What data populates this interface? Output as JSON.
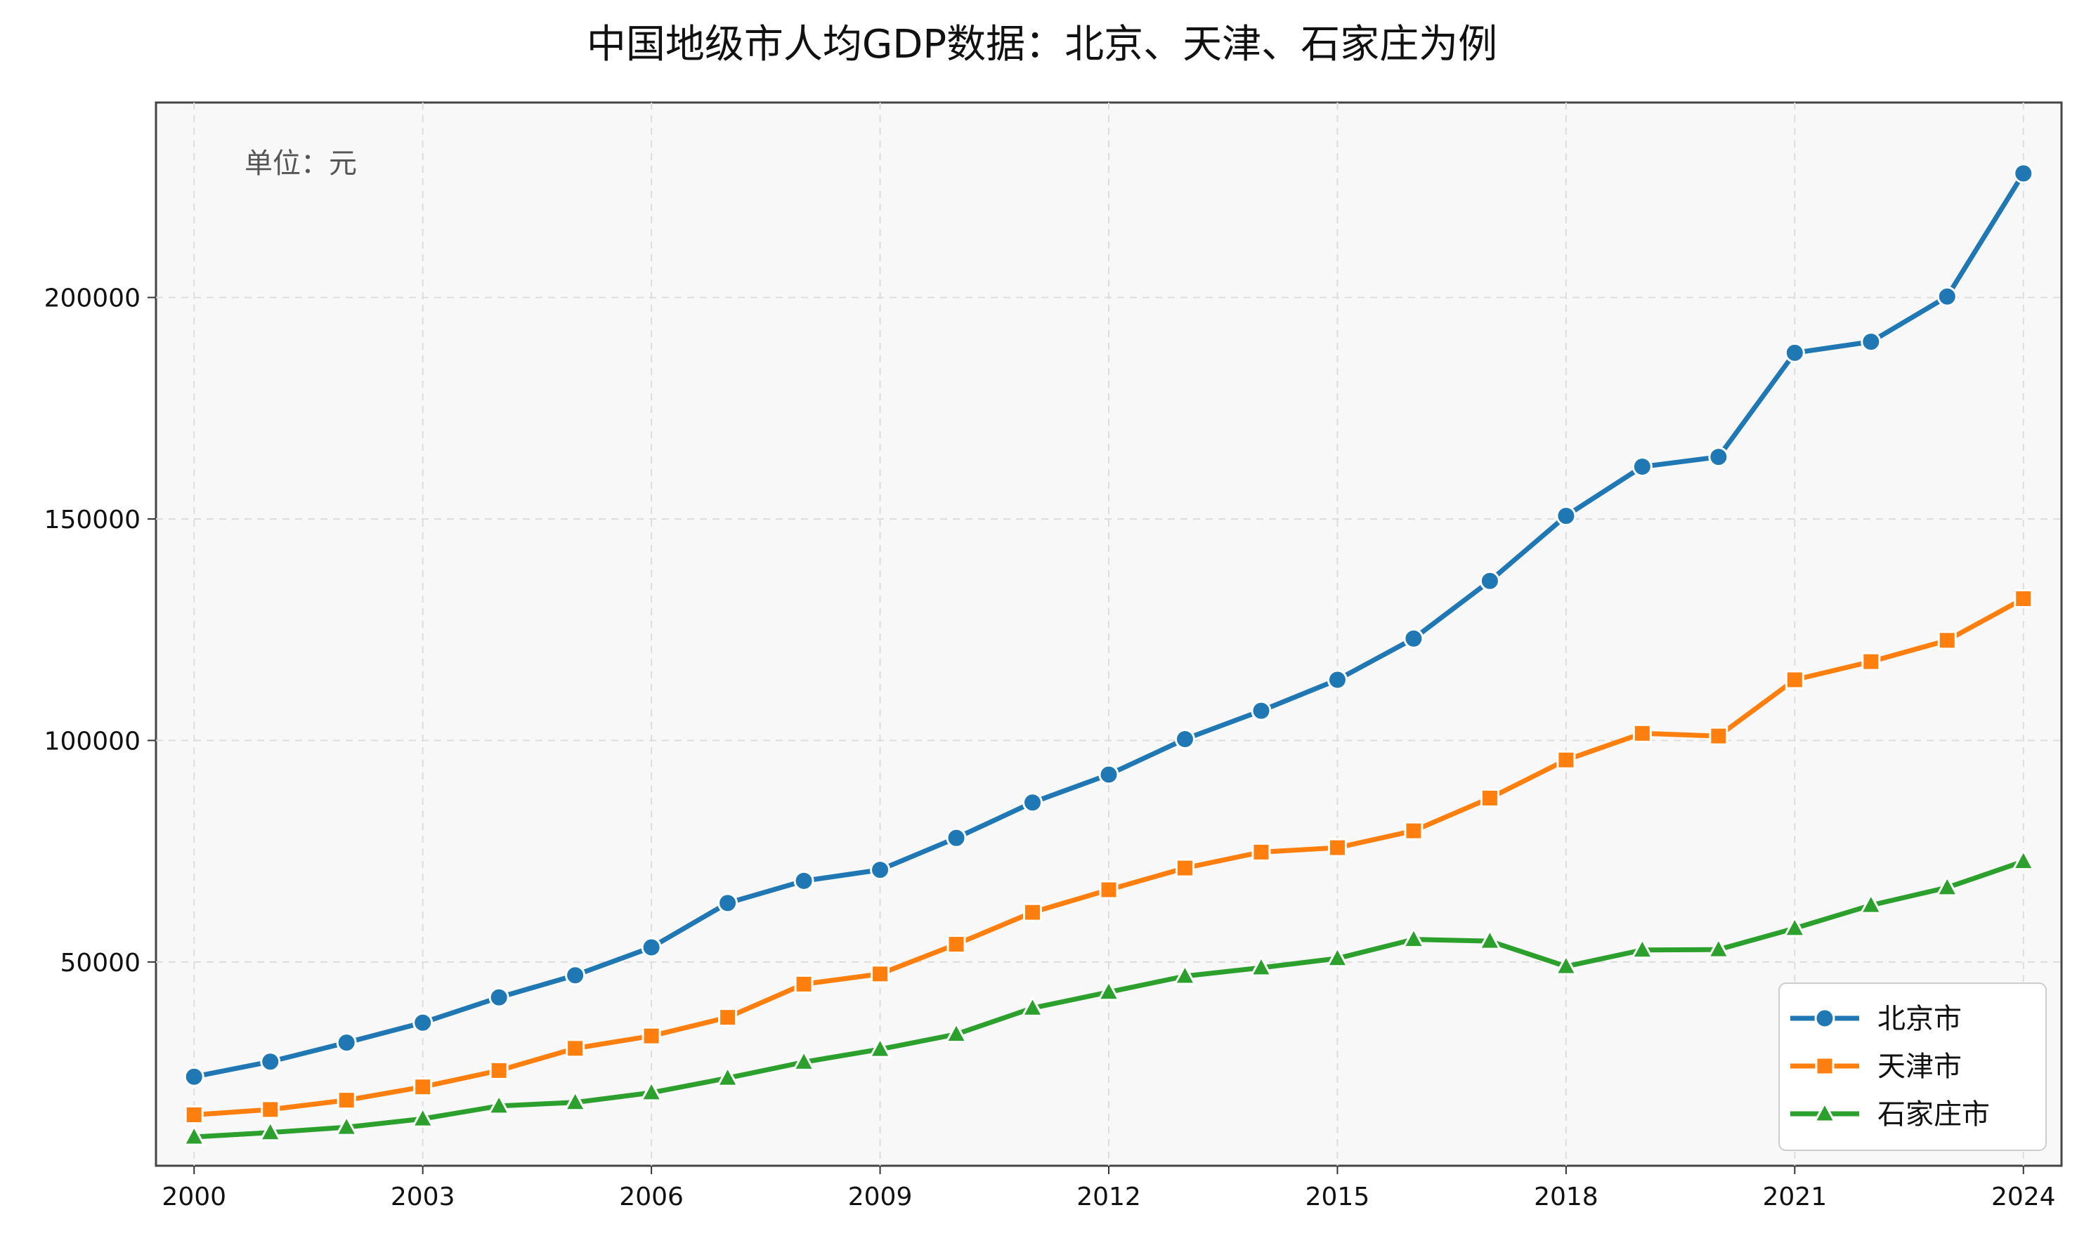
{
  "chart_data": {
    "type": "line",
    "title": "中国地级市人均GDP数据：北京、天津、石家庄为例",
    "annotation": "单位：元",
    "xlabel": "",
    "ylabel": "",
    "x": [
      2000,
      2001,
      2002,
      2003,
      2004,
      2005,
      2006,
      2007,
      2008,
      2009,
      2010,
      2011,
      2012,
      2013,
      2014,
      2015,
      2016,
      2017,
      2018,
      2019,
      2020,
      2021,
      2022,
      2023,
      2024
    ],
    "x_ticks": [
      "2000",
      "2003",
      "2006",
      "2009",
      "2012",
      "2015",
      "2018",
      "2021",
      "2024"
    ],
    "y_ticks": [
      "50000",
      "100000",
      "150000",
      "200000"
    ],
    "xlim": [
      1999.5,
      2024.5
    ],
    "ylim": [
      4000,
      244000
    ],
    "grid": true,
    "legend_position": "bottom-right",
    "series": [
      {
        "name": "北京市",
        "color": "#1f77b4",
        "marker": "circle",
        "values": [
          24100,
          27500,
          31800,
          36300,
          42000,
          47000,
          53300,
          63300,
          68300,
          70800,
          78000,
          86000,
          92300,
          100300,
          106700,
          113700,
          123000,
          136000,
          150700,
          161800,
          164000,
          187500,
          190000,
          200200,
          228000
        ]
      },
      {
        "name": "天津市",
        "color": "#ff7f0e",
        "marker": "square",
        "values": [
          15500,
          16700,
          18800,
          21800,
          25500,
          30500,
          33300,
          37500,
          45000,
          47300,
          54000,
          61200,
          66300,
          71200,
          74800,
          75800,
          79600,
          87000,
          95600,
          101600,
          101000,
          113700,
          117800,
          122600,
          132000
        ]
      },
      {
        "name": "石家庄市",
        "color": "#2ca02c",
        "marker": "triangle",
        "values": [
          10500,
          11500,
          12700,
          14600,
          17500,
          18300,
          20500,
          23800,
          27400,
          30300,
          33700,
          39600,
          43200,
          46800,
          48700,
          50800,
          55100,
          54700,
          49000,
          52700,
          52800,
          57600,
          62800,
          66800,
          72700
        ]
      }
    ]
  }
}
